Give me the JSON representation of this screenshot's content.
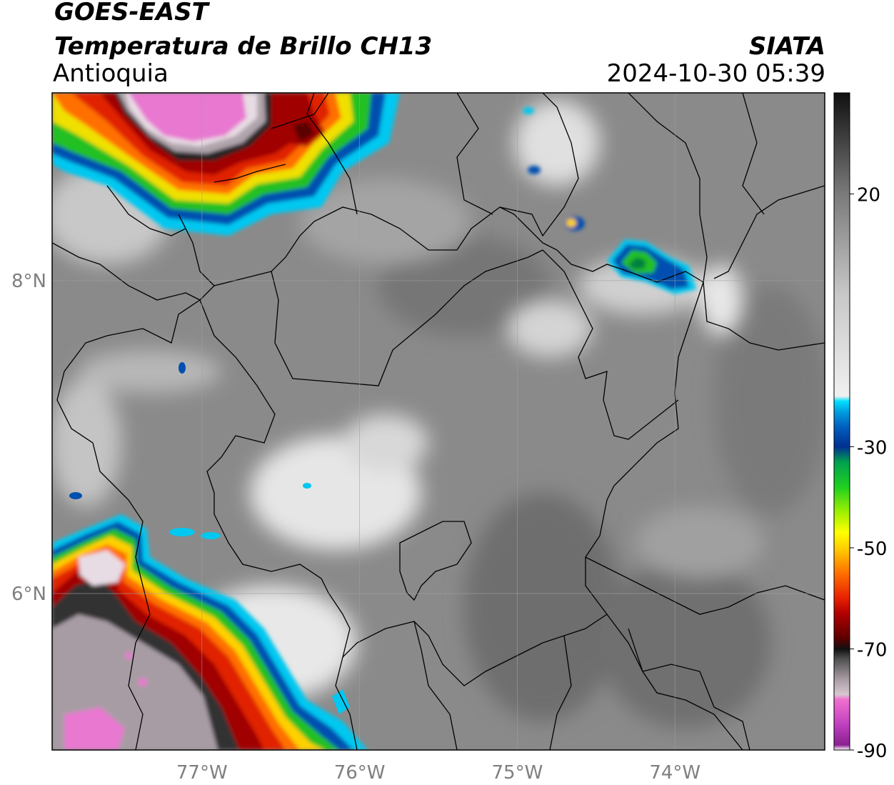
{
  "header": {
    "satellite": "GOES-EAST",
    "product": "Temperatura de Brillo CH13",
    "region": "Antioquia",
    "agency": "SIATA",
    "timestamp": "2024-10-30 05:39"
  },
  "map": {
    "lon_range": [
      -77.95,
      -73.05
    ],
    "lat_range": [
      5.0,
      9.2
    ],
    "x_ticks": [
      {
        "value": -77,
        "label": "77°W"
      },
      {
        "value": -76,
        "label": "76°W"
      },
      {
        "value": -75,
        "label": "75°W"
      },
      {
        "value": -74,
        "label": "74°W"
      }
    ],
    "y_ticks": [
      {
        "value": 8,
        "label": "8°N"
      },
      {
        "value": 6,
        "label": "6°N"
      }
    ],
    "grid": true,
    "background_color": "#8a8a8a"
  },
  "colorbar": {
    "range": [
      -90,
      40
    ],
    "ticks": [
      {
        "value": 20,
        "label": "20"
      },
      {
        "value": -30,
        "label": "-30"
      },
      {
        "value": -50,
        "label": "-50"
      },
      {
        "value": -70,
        "label": "-70"
      },
      {
        "value": -90,
        "label": "-90"
      }
    ],
    "stops": [
      {
        "value": -90,
        "color": "#ffffff"
      },
      {
        "value": -89,
        "color": "#8a2090"
      },
      {
        "value": -85,
        "color": "#c040c0"
      },
      {
        "value": -80,
        "color": "#f070d0"
      },
      {
        "value": -79,
        "color": "#d8c8d0"
      },
      {
        "value": -76,
        "color": "#a89ca4"
      },
      {
        "value": -72,
        "color": "#505050"
      },
      {
        "value": -70,
        "color": "#101010"
      },
      {
        "value": -68,
        "color": "#5a0000"
      },
      {
        "value": -63,
        "color": "#b00000"
      },
      {
        "value": -60,
        "color": "#e82000"
      },
      {
        "value": -55,
        "color": "#ff7000"
      },
      {
        "value": -50,
        "color": "#ffd000"
      },
      {
        "value": -47,
        "color": "#ffff00"
      },
      {
        "value": -43,
        "color": "#a0f000"
      },
      {
        "value": -38,
        "color": "#20d020"
      },
      {
        "value": -33,
        "color": "#00a050"
      },
      {
        "value": -30,
        "color": "#003090"
      },
      {
        "value": -26,
        "color": "#0060c0"
      },
      {
        "value": -23,
        "color": "#00a0e0"
      },
      {
        "value": -21,
        "color": "#00e0ff"
      },
      {
        "value": -20,
        "color": "#f0f0f0"
      },
      {
        "value": 0,
        "color": "#c8c8c8"
      },
      {
        "value": 20,
        "color": "#7a7a7a"
      },
      {
        "value": 32,
        "color": "#3a3a3a"
      },
      {
        "value": 40,
        "color": "#101010"
      }
    ]
  }
}
